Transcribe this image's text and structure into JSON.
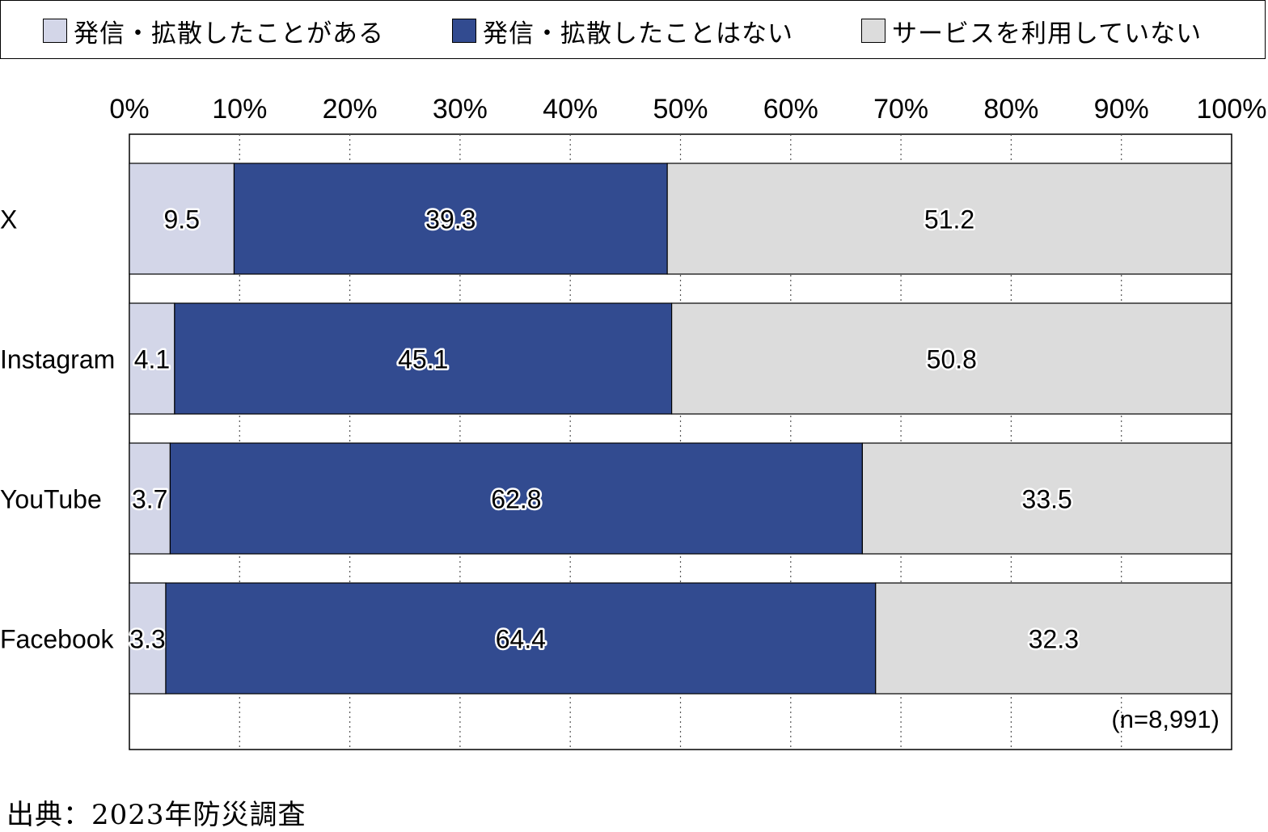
{
  "legend": [
    {
      "label": "発信・拡散したことがある",
      "color": "#d3d6e8"
    },
    {
      "label": "発信・拡散したことはない",
      "color": "#324b90"
    },
    {
      "label": "サービスを利用していない",
      "color": "#dcdcdc"
    }
  ],
  "note": "(n=8,991)",
  "source": "出典：2023年防災調査",
  "chart_data": {
    "type": "bar",
    "orientation": "horizontal",
    "stacked": true,
    "xlim": [
      0,
      100
    ],
    "xticks": [
      "0%",
      "10%",
      "20%",
      "30%",
      "40%",
      "50%",
      "60%",
      "70%",
      "80%",
      "90%",
      "100%"
    ],
    "categories": [
      "X",
      "Instagram",
      "YouTube",
      "Facebook"
    ],
    "series": [
      {
        "name": "発信・拡散したことがある",
        "values": [
          9.5,
          4.1,
          3.7,
          3.3
        ],
        "labels": [
          "9.5",
          "4.1",
          "3.7",
          "3.3"
        ],
        "color": "#d3d6e8"
      },
      {
        "name": "発信・拡散したことはない",
        "values": [
          39.3,
          45.1,
          62.8,
          64.4
        ],
        "labels": [
          "39.3",
          "45.1",
          "62.8",
          "64.4"
        ],
        "color": "#324b90"
      },
      {
        "name": "サービスを利用していない",
        "values": [
          51.2,
          50.8,
          33.5,
          32.3
        ],
        "labels": [
          "51.2",
          "50.8",
          "33.5",
          "32.3"
        ],
        "color": "#dcdcdc"
      }
    ],
    "grid": true
  }
}
